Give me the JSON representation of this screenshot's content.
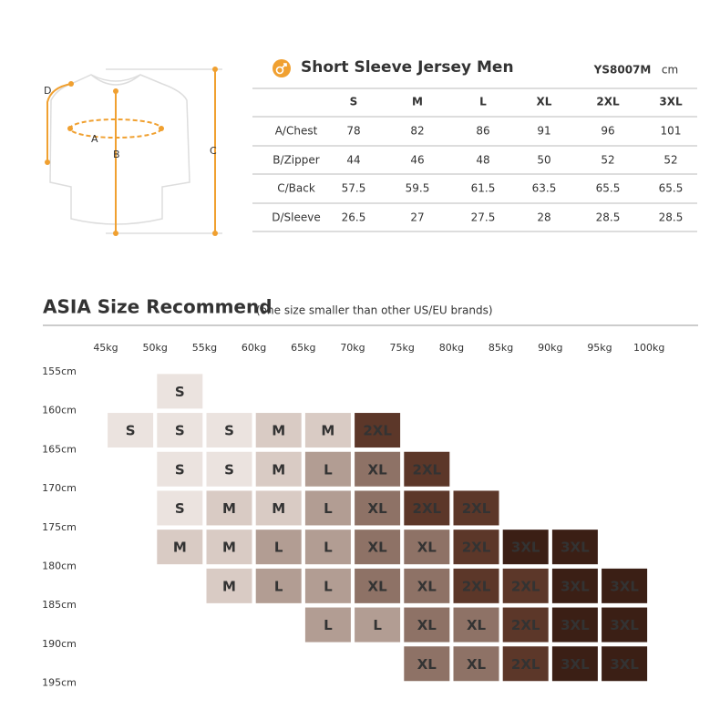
{
  "header": {
    "title": "Short Sleeve Jersey Men",
    "code": "YS8007M",
    "unit": "cm"
  },
  "diagram": {
    "labels": [
      "D",
      "A",
      "B",
      "C"
    ]
  },
  "table": {
    "columns": [
      "S",
      "M",
      "L",
      "XL",
      "2XL",
      "3XL"
    ],
    "rows": [
      {
        "label": "A/Chest",
        "values": [
          "78",
          "82",
          "86",
          "91",
          "96",
          "101"
        ]
      },
      {
        "label": "B/Zipper",
        "values": [
          "44",
          "46",
          "48",
          "50",
          "52",
          "52"
        ]
      },
      {
        "label": "C/Back",
        "values": [
          "57.5",
          "59.5",
          "61.5",
          "63.5",
          "65.5",
          "65.5"
        ]
      },
      {
        "label": "D/Sleeve",
        "values": [
          "26.5",
          "27",
          "27.5",
          "28",
          "28.5",
          "28.5"
        ]
      }
    ]
  },
  "recommend": {
    "title": "ASIA Size Recommend",
    "subtitle": "(one size smaller than other US/EU brands)",
    "weights": [
      "45kg",
      "50kg",
      "55kg",
      "60kg",
      "65kg",
      "70kg",
      "75kg",
      "80kg",
      "85kg",
      "90kg",
      "95kg",
      "100kg"
    ],
    "heights": [
      "155cm",
      "160cm",
      "165cm",
      "170cm",
      "175cm",
      "180cm",
      "185cm",
      "190cm",
      "195cm"
    ],
    "size_colors": {
      "S": "#ebe3df",
      "M": "#d9cbc4",
      "L": "#b29d93",
      "XL": "#8e7266",
      "2XL": "#5c3729",
      "3XL": "#3b1f15"
    },
    "grid": [
      [
        null,
        "S",
        null,
        null,
        null,
        null,
        null,
        null,
        null,
        null,
        null
      ],
      [
        "S",
        "S",
        "S",
        "M",
        "M",
        "2XL",
        null,
        null,
        null,
        null,
        null
      ],
      [
        null,
        "S",
        "S",
        "M",
        "L",
        "XL",
        "2XL",
        null,
        null,
        null,
        null
      ],
      [
        null,
        "S",
        "M",
        "M",
        "L",
        "XL",
        "2XL",
        "2XL",
        null,
        null,
        null
      ],
      [
        null,
        "M",
        "M",
        "L",
        "L",
        "XL",
        "XL",
        "2XL",
        "3XL",
        "3XL",
        null
      ],
      [
        null,
        null,
        "M",
        "L",
        "L",
        "XL",
        "XL",
        "2XL",
        "2XL",
        "3XL",
        "3XL"
      ],
      [
        null,
        null,
        null,
        null,
        "L",
        "L",
        "XL",
        "XL",
        "2XL",
        "3XL",
        "3XL"
      ],
      [
        null,
        null,
        null,
        null,
        null,
        null,
        "XL",
        "XL",
        "2XL",
        "3XL",
        "3XL"
      ]
    ]
  }
}
